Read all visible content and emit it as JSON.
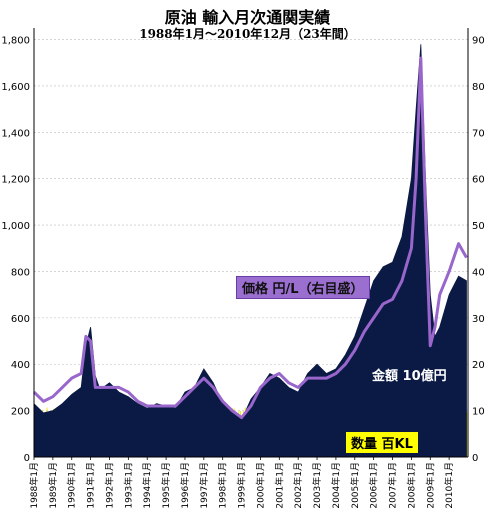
{
  "title": "原油 輸入月次通関実績",
  "subtitle": "1988年1月～2010年12月（23年間）",
  "chart_data": {
    "type": "area",
    "ylim": [
      0,
      1850
    ],
    "y2lim": [
      0,
      92.5
    ],
    "yticks": [
      0,
      200,
      400,
      600,
      800,
      1000,
      1200,
      1400,
      1600,
      1800
    ],
    "y2ticks": [
      0,
      10,
      20,
      30,
      40,
      50,
      60,
      70,
      80,
      90
    ],
    "x_labels": [
      "1988年1月",
      "1989年1月",
      "1990年1月",
      "1991年1月",
      "1992年1月",
      "1993年1月",
      "1994年1月",
      "1995年1月",
      "1996年1月",
      "1997年1月",
      "1998年1月",
      "1999年1月",
      "2000年1月",
      "2001年1月",
      "2002年1月",
      "2003年1月",
      "2004年1月",
      "2005年1月",
      "2006年1月",
      "2007年1月",
      "2008年1月",
      "2009年1月",
      "2010年1月"
    ],
    "grid": true,
    "series": [
      {
        "name": "金額 10億円",
        "kind": "area",
        "axis": "left",
        "color": "#0b1a45",
        "x": [
          1988.0,
          1988.5,
          1989.0,
          1989.5,
          1990.0,
          1990.5,
          1990.75,
          1991.0,
          1991.25,
          1991.5,
          1992.0,
          1992.5,
          1993.0,
          1993.5,
          1994.0,
          1994.5,
          1995.0,
          1995.5,
          1996.0,
          1996.5,
          1997.0,
          1997.5,
          1998.0,
          1998.5,
          1999.0,
          1999.5,
          2000.0,
          2000.5,
          2001.0,
          2001.5,
          2002.0,
          2002.5,
          2003.0,
          2003.5,
          2004.0,
          2004.5,
          2005.0,
          2005.5,
          2006.0,
          2006.5,
          2007.0,
          2007.5,
          2008.0,
          2008.25,
          2008.5,
          2008.75,
          2009.0,
          2009.25,
          2009.5,
          2010.0,
          2010.5,
          2010.92
        ],
        "values": [
          230,
          190,
          200,
          230,
          270,
          300,
          480,
          560,
          350,
          290,
          320,
          280,
          260,
          230,
          210,
          230,
          220,
          210,
          280,
          300,
          380,
          320,
          230,
          200,
          160,
          250,
          300,
          360,
          340,
          300,
          280,
          360,
          400,
          360,
          380,
          440,
          520,
          640,
          760,
          820,
          840,
          950,
          1200,
          1500,
          1780,
          1200,
          700,
          520,
          560,
          700,
          780,
          760
        ]
      },
      {
        "name": "価格 円/L（右目盛）",
        "kind": "line",
        "axis": "right",
        "color": "#9966cc",
        "x": [
          1988.0,
          1988.5,
          1989.0,
          1989.5,
          1990.0,
          1990.5,
          1990.75,
          1991.0,
          1991.25,
          1991.5,
          1992.0,
          1992.5,
          1993.0,
          1993.5,
          1994.0,
          1994.5,
          1995.0,
          1995.5,
          1996.0,
          1996.5,
          1997.0,
          1997.5,
          1998.0,
          1998.5,
          1999.0,
          1999.5,
          2000.0,
          2000.5,
          2001.0,
          2001.5,
          2002.0,
          2002.5,
          2003.0,
          2003.5,
          2004.0,
          2004.5,
          2005.0,
          2005.5,
          2006.0,
          2006.5,
          2007.0,
          2007.5,
          2008.0,
          2008.25,
          2008.5,
          2008.75,
          2009.0,
          2009.25,
          2009.5,
          2010.0,
          2010.5,
          2010.92
        ],
        "values": [
          14,
          12,
          13,
          15,
          17,
          18,
          26,
          25,
          15,
          15,
          15,
          15,
          14,
          12,
          11,
          11,
          11,
          11,
          13,
          15,
          17,
          15,
          12,
          10,
          8.5,
          11,
          15,
          17,
          18,
          16,
          15,
          17,
          17,
          17,
          18,
          20,
          23,
          27,
          30,
          33,
          34,
          38,
          45,
          60,
          86,
          52,
          24,
          28,
          35,
          40,
          46,
          43
        ]
      },
      {
        "name": "数量 百KL",
        "kind": "bar",
        "axis": "left",
        "color": "#e8e800",
        "base_value": 190,
        "amplitude": 25
      }
    ],
    "annotations": [
      "価格 円/L（右目盛）",
      "金額 10億円",
      "数量 百KL"
    ]
  }
}
